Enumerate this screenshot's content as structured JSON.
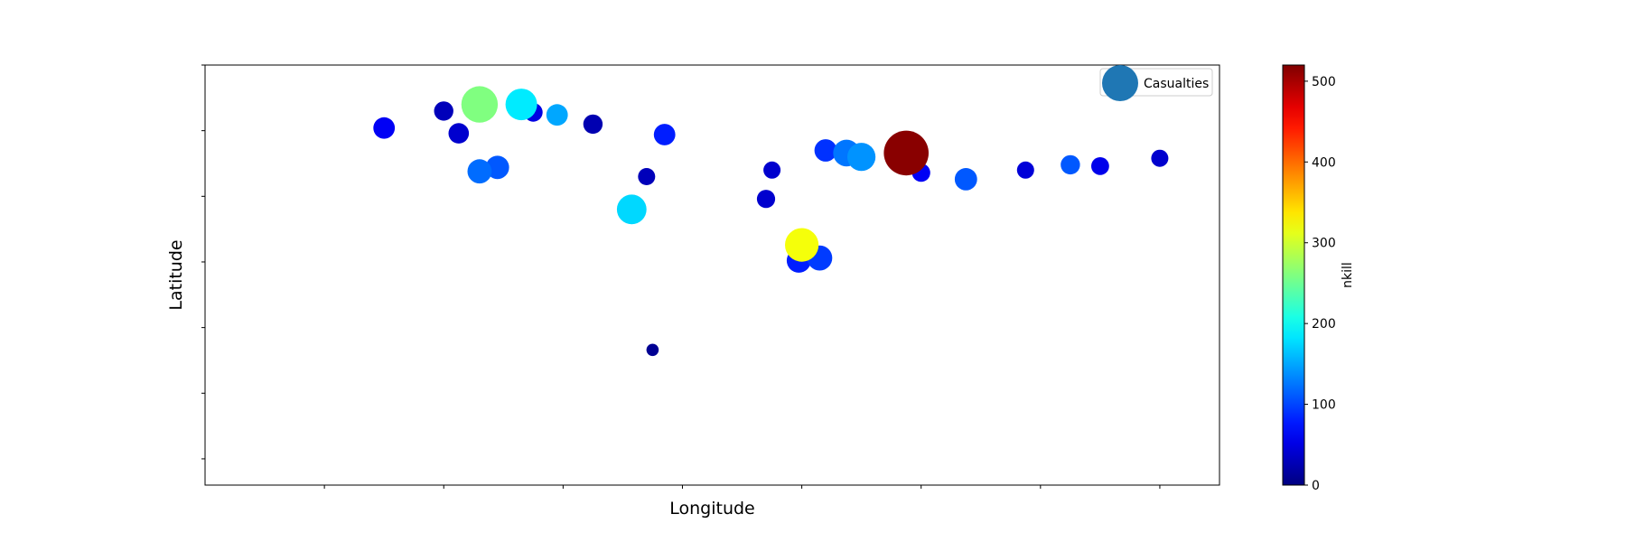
{
  "chart_data": {
    "type": "scatter",
    "title": "",
    "xlabel": "Longitude",
    "ylabel": "Latitude",
    "xlim": [
      -16,
      18
    ],
    "ylim": [
      24,
      56
    ],
    "x_ticks": [
      -12,
      -8,
      -4,
      0,
      4,
      8,
      12,
      16
    ],
    "y_ticks": [
      26,
      31,
      36,
      41,
      46,
      51,
      56
    ],
    "tick_labels_visible": false,
    "grid": false,
    "legend": {
      "placement": "top-right",
      "entries": [
        {
          "name": "Casualties",
          "color": "#1f77b4"
        }
      ]
    },
    "colorbar": {
      "label": "nkill",
      "colormap": "jet",
      "range": [
        0,
        520
      ],
      "ticks": [
        0,
        100,
        200,
        300,
        400,
        500
      ]
    },
    "size_encoding": "casualties",
    "color_encoding": "nkill",
    "series": [
      {
        "name": "Casualties",
        "points": [
          {
            "x": -6.8,
            "y": 53.0,
            "size": 160,
            "nkill": 260
          },
          {
            "x": -5.4,
            "y": 53.0,
            "size": 120,
            "nkill": 185
          },
          {
            "x": 7.5,
            "y": 49.3,
            "size": 240,
            "nkill": 515
          },
          {
            "x": 4.0,
            "y": 42.3,
            "size": 135,
            "nkill": 320
          },
          {
            "x": -1.7,
            "y": 45.0,
            "size": 105,
            "nkill": 175
          },
          {
            "x": 6.0,
            "y": 49.0,
            "size": 95,
            "nkill": 140
          },
          {
            "x": 5.5,
            "y": 49.3,
            "size": 85,
            "nkill": 125
          },
          {
            "x": -6.8,
            "y": 47.9,
            "size": 70,
            "nkill": 120
          },
          {
            "x": -6.2,
            "y": 48.2,
            "size": 65,
            "nkill": 110
          },
          {
            "x": 9.5,
            "y": 47.3,
            "size": 60,
            "nkill": 110
          },
          {
            "x": 4.6,
            "y": 41.3,
            "size": 75,
            "nkill": 95
          },
          {
            "x": 3.9,
            "y": 41.1,
            "size": 70,
            "nkill": 80
          },
          {
            "x": 4.2,
            "y": 41.9,
            "size": 60,
            "nkill": 60
          },
          {
            "x": -4.2,
            "y": 52.2,
            "size": 55,
            "nkill": 150
          },
          {
            "x": -0.6,
            "y": 50.7,
            "size": 55,
            "nkill": 80
          },
          {
            "x": 4.8,
            "y": 49.5,
            "size": 60,
            "nkill": 90
          },
          {
            "x": -10.0,
            "y": 51.2,
            "size": 55,
            "nkill": 60
          },
          {
            "x": 13.0,
            "y": 48.4,
            "size": 45,
            "nkill": 110
          },
          {
            "x": 16.0,
            "y": 48.9,
            "size": 35,
            "nkill": 40
          },
          {
            "x": -1.2,
            "y": 47.5,
            "size": 35,
            "nkill": 30
          },
          {
            "x": 2.8,
            "y": 45.8,
            "size": 40,
            "nkill": 40
          },
          {
            "x": -1.0,
            "y": 34.3,
            "size": 18,
            "nkill": 10
          },
          {
            "x": -8.0,
            "y": 52.5,
            "size": 45,
            "nkill": 30
          },
          {
            "x": -3.0,
            "y": 51.5,
            "size": 45,
            "nkill": 25
          },
          {
            "x": -7.5,
            "y": 50.8,
            "size": 50,
            "nkill": 40
          },
          {
            "x": 3.0,
            "y": 48.0,
            "size": 35,
            "nkill": 40
          },
          {
            "x": 8.0,
            "y": 47.8,
            "size": 40,
            "nkill": 60
          },
          {
            "x": 11.5,
            "y": 48.0,
            "size": 35,
            "nkill": 45
          },
          {
            "x": 14.0,
            "y": 48.3,
            "size": 38,
            "nkill": 55
          },
          {
            "x": -5.0,
            "y": 52.4,
            "size": 42,
            "nkill": 50
          }
        ]
      }
    ]
  }
}
